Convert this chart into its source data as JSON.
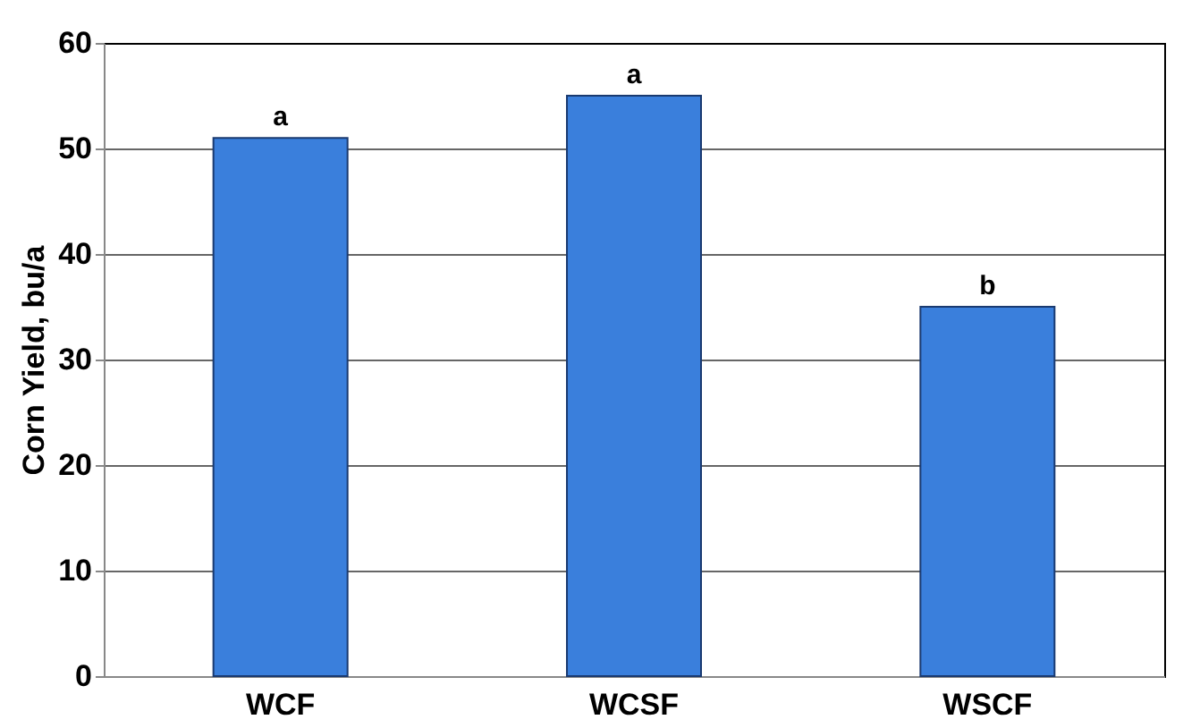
{
  "chart_data": {
    "type": "bar",
    "ylabel": "Corn Yield, bu/a",
    "categories": [
      "WCF",
      "WCSF",
      "WSCF"
    ],
    "values": [
      51,
      55,
      35
    ],
    "color": "#3a7fdc",
    "ylim": [
      0,
      60
    ],
    "yticks": [
      0,
      10,
      20,
      30,
      40,
      50,
      60
    ],
    "grid": "y",
    "annotations": [
      {
        "text": "a",
        "x": "WCF",
        "y": 51
      },
      {
        "text": "a",
        "x": "WCSF",
        "y": 55
      },
      {
        "text": "b",
        "x": "WSCF",
        "y": 35
      }
    ]
  }
}
